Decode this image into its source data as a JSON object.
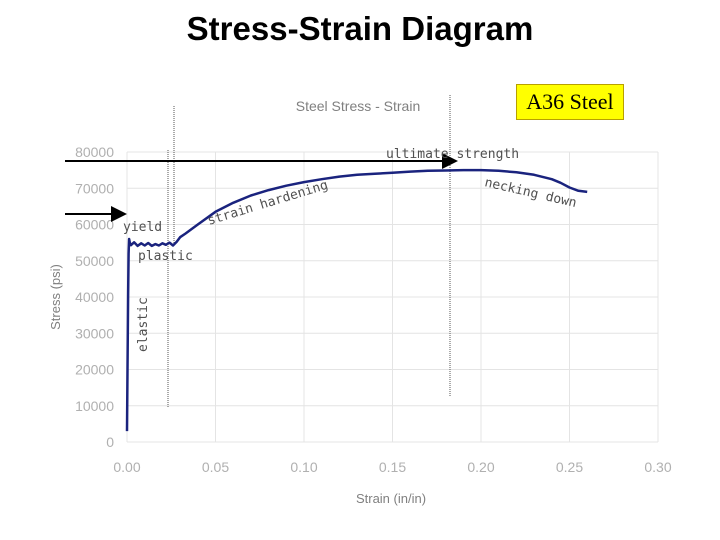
{
  "slide": {
    "title": "Stress-Strain  Diagram",
    "material_label": "A36 Steel"
  },
  "colors": {
    "curve": "#1a237e",
    "grid": "#e4e4e4",
    "tick_text": "#b0b0b0",
    "label_box": "#ffff00"
  },
  "chart_data": {
    "type": "line",
    "title": "Steel Stress - Strain",
    "xlabel": "Strain (in/in)",
    "ylabel": "Stress (psi)",
    "xlim": [
      0,
      0.3
    ],
    "ylim": [
      0,
      80000
    ],
    "x_ticks": [
      "0.00",
      "0.05",
      "0.10",
      "0.15",
      "0.20",
      "0.25",
      "0.30"
    ],
    "y_ticks": [
      "0",
      "10000",
      "20000",
      "30000",
      "40000",
      "50000",
      "60000",
      "70000",
      "80000"
    ],
    "grid": true,
    "series": [
      {
        "points": [
          [
            0.0,
            3000
          ],
          [
            0.0003,
            20000
          ],
          [
            0.0006,
            40000
          ],
          [
            0.0009,
            52000
          ],
          [
            0.0012,
            56000
          ],
          [
            0.0016,
            55000
          ],
          [
            0.0022,
            54300
          ],
          [
            0.004,
            55100
          ],
          [
            0.006,
            54100
          ],
          [
            0.008,
            54800
          ],
          [
            0.01,
            54200
          ],
          [
            0.012,
            54900
          ],
          [
            0.014,
            54100
          ],
          [
            0.016,
            54600
          ],
          [
            0.018,
            54200
          ],
          [
            0.02,
            54800
          ],
          [
            0.022,
            54400
          ],
          [
            0.024,
            55000
          ],
          [
            0.026,
            54200
          ],
          [
            0.028,
            55200
          ],
          [
            0.03,
            56500
          ],
          [
            0.033,
            57500
          ],
          [
            0.04,
            60000
          ],
          [
            0.05,
            63500
          ],
          [
            0.06,
            66000
          ],
          [
            0.07,
            68000
          ],
          [
            0.08,
            69500
          ],
          [
            0.09,
            70700
          ],
          [
            0.1,
            71700
          ],
          [
            0.11,
            72500
          ],
          [
            0.12,
            73200
          ],
          [
            0.13,
            73700
          ],
          [
            0.14,
            74000
          ],
          [
            0.15,
            74300
          ],
          [
            0.16,
            74600
          ],
          [
            0.17,
            74800
          ],
          [
            0.18,
            74900
          ],
          [
            0.19,
            75000
          ],
          [
            0.2,
            75000
          ],
          [
            0.21,
            74800
          ],
          [
            0.22,
            74400
          ],
          [
            0.23,
            73700
          ],
          [
            0.24,
            72500
          ],
          [
            0.245,
            71500
          ],
          [
            0.25,
            70200
          ],
          [
            0.255,
            69300
          ],
          [
            0.26,
            69000
          ]
        ]
      }
    ],
    "reference_lines": [
      {
        "label": "ultimate strength",
        "y": 75000
      },
      {
        "label": "yield",
        "y": 60000
      }
    ],
    "annotations": [
      "ultimate strength",
      "necking down",
      "strain hardening",
      "yield",
      "plastic",
      "elastic"
    ]
  }
}
